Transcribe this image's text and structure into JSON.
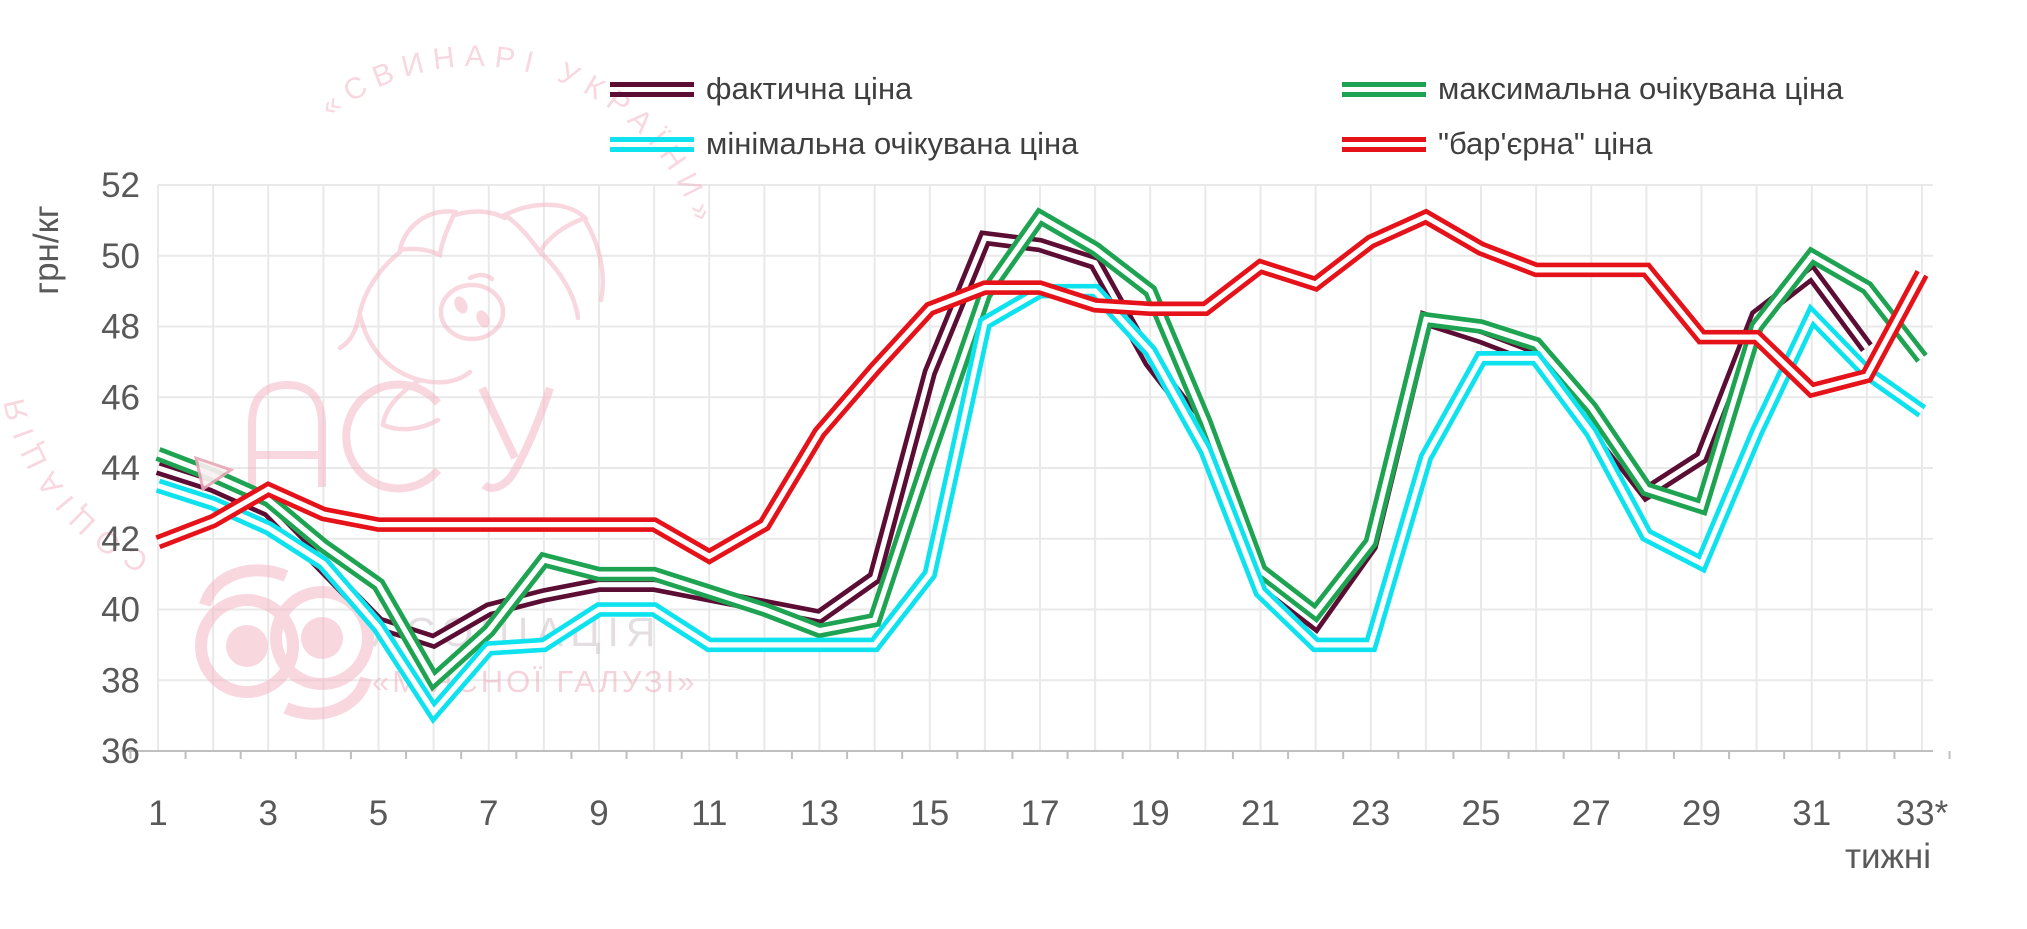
{
  "chart_data": {
    "type": "line",
    "title": "",
    "ylabel": "грн/кг",
    "xlabel": "тижні",
    "ylim": [
      36,
      52
    ],
    "y_ticks": [
      36,
      38,
      40,
      42,
      44,
      46,
      48,
      50,
      52
    ],
    "x_tick_labels": [
      "1",
      "3",
      "5",
      "7",
      "9",
      "11",
      "13",
      "15",
      "17",
      "19",
      "21",
      "23",
      "25",
      "27",
      "29",
      "31",
      "33*"
    ],
    "weeks": [
      1,
      2,
      3,
      4,
      5,
      6,
      7,
      8,
      9,
      10,
      11,
      12,
      13,
      14,
      15,
      16,
      17,
      18,
      19,
      20,
      21,
      22,
      23,
      24,
      25,
      26,
      27,
      28,
      29,
      30,
      31,
      32,
      33
    ],
    "grid": "on",
    "legend_position": "top",
    "series": [
      {
        "name": "фактична ціна",
        "color": "#5b0d34",
        "values": [
          44.0,
          43.5,
          42.8,
          41.2,
          39.6,
          39.1,
          40.0,
          40.4,
          40.7,
          40.7,
          40.4,
          40.1,
          39.8,
          40.9,
          46.7,
          50.5,
          50.3,
          49.8,
          47.0,
          45.0,
          40.8,
          39.6,
          41.8,
          48.2,
          47.7,
          47.1,
          45.3,
          43.3,
          44.3,
          48.3,
          49.5,
          47.4,
          null
        ]
      },
      {
        "name": "максимальна очікувана ціна",
        "color": "#1da351",
        "values": [
          44.4,
          43.8,
          43.1,
          41.8,
          40.7,
          38.0,
          39.4,
          41.4,
          41.0,
          41.0,
          40.5,
          40.0,
          39.4,
          39.7,
          44.4,
          48.9,
          51.1,
          50.2,
          49.0,
          45.3,
          41.1,
          39.9,
          41.9,
          48.2,
          48.0,
          47.5,
          45.7,
          43.4,
          42.9,
          48.0,
          50.0,
          49.1,
          47.1
        ]
      },
      {
        "name": "мінімальна очікувана ціна",
        "color": "#0ee2ee",
        "values": [
          43.5,
          43.0,
          42.3,
          41.3,
          39.5,
          37.1,
          38.9,
          39.0,
          40.0,
          40.0,
          39.0,
          39.0,
          39.0,
          39.0,
          41.0,
          48.1,
          49.0,
          49.0,
          47.3,
          44.5,
          40.5,
          39.0,
          39.0,
          44.3,
          47.1,
          47.1,
          45.0,
          42.1,
          41.3,
          45.0,
          48.3,
          46.7,
          45.6
        ]
      },
      {
        "name": "\"бар'єрна\" ціна",
        "color": "#e51219",
        "values": [
          41.9,
          42.5,
          43.4,
          42.7,
          42.4,
          42.4,
          42.4,
          42.4,
          42.4,
          42.4,
          41.5,
          42.4,
          45.0,
          46.8,
          48.5,
          49.1,
          49.1,
          48.6,
          48.5,
          48.5,
          49.7,
          49.2,
          50.4,
          51.1,
          50.2,
          49.6,
          49.6,
          49.6,
          47.7,
          47.7,
          46.2,
          46.6,
          49.5
        ]
      }
    ]
  },
  "legend": {
    "items": [
      {
        "label": "фактична ціна",
        "color": "#5b0d34"
      },
      {
        "label": "максимальна очікувана ціна",
        "color": "#1da351"
      },
      {
        "label": "мінімальна очікувана ціна",
        "color": "#0ee2ee"
      },
      {
        "label": "\"бар'єрна\" ціна",
        "color": "#e51219"
      }
    ]
  },
  "axes": {
    "y_title": "грн/кг",
    "x_title": "тижні"
  },
  "watermark": {
    "arc_text_left": "СОЦІАЦІЯ",
    "arc_text_top": "«СВИНАРІ УКРАЇНИ»",
    "big_letters": "АСУ",
    "bottom_text_1": "АСОЦІАЦІЯ",
    "bottom_text_2": "«М'ЯСНОЇ ГАЛУЗІ»",
    "pink": "#f4b7c5"
  }
}
